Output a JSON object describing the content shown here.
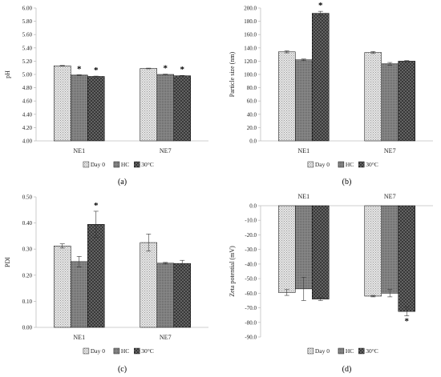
{
  "colors": {
    "day0_fill": "#d9d9d9",
    "hc_fill": "#7f7f7f",
    "c30_fill": "#595959",
    "axis": "#bfbfbf",
    "bar_edge": "#000000"
  },
  "chart_data": [
    {
      "type": "bar",
      "panel_label": "(a)",
      "ylabel": "pH",
      "categories": [
        "NE1",
        "NE7"
      ],
      "ylim": [
        4.0,
        6.0
      ],
      "ytick_step": 0.2,
      "ytick_decimals": 2,
      "series": [
        {
          "name": "Day 0",
          "values": [
            5.13,
            5.09
          ],
          "errors": [
            0.005,
            0.005
          ],
          "sig": [
            false,
            false
          ]
        },
        {
          "name": "HC",
          "values": [
            4.99,
            5.0
          ],
          "errors": [
            0.005,
            0.005
          ],
          "sig": [
            true,
            true
          ]
        },
        {
          "name": "30°C",
          "values": [
            4.97,
            4.98
          ],
          "errors": [
            0.005,
            0.005
          ],
          "sig": [
            true,
            true
          ]
        }
      ],
      "legend": "bottom",
      "grid": false
    },
    {
      "type": "bar",
      "panel_label": "(b)",
      "ylabel": "Particle size (nm)",
      "categories": [
        "NE1",
        "NE7"
      ],
      "ylim": [
        0,
        200
      ],
      "ytick_step": 20,
      "ytick_decimals": 1,
      "series": [
        {
          "name": "Day 0",
          "values": [
            134,
            133
          ],
          "errors": [
            1.5,
            1.5
          ],
          "sig": [
            false,
            false
          ]
        },
        {
          "name": "HC",
          "values": [
            122,
            116
          ],
          "errors": [
            1.2,
            2.0
          ],
          "sig": [
            false,
            false
          ]
        },
        {
          "name": "30°C",
          "values": [
            192,
            120
          ],
          "errors": [
            3.0,
            0.8
          ],
          "sig": [
            true,
            false
          ]
        }
      ],
      "legend": "bottom",
      "grid": false
    },
    {
      "type": "bar",
      "panel_label": "(c)",
      "ylabel": "PDI",
      "categories": [
        "NE1",
        "NE7"
      ],
      "ylim": [
        0.0,
        0.5
      ],
      "ytick_step": 0.1,
      "ytick_decimals": 2,
      "series": [
        {
          "name": "Day 0",
          "values": [
            0.312,
            0.325
          ],
          "errors": [
            0.008,
            0.033
          ],
          "sig": [
            false,
            false
          ]
        },
        {
          "name": "HC",
          "values": [
            0.252,
            0.246
          ],
          "errors": [
            0.02,
            0.003
          ],
          "sig": [
            false,
            false
          ]
        },
        {
          "name": "30°C",
          "values": [
            0.395,
            0.245
          ],
          "errors": [
            0.05,
            0.012
          ],
          "sig": [
            true,
            false
          ]
        }
      ],
      "legend": "bottom",
      "grid": false
    },
    {
      "type": "bar",
      "panel_label": "(d)",
      "ylabel": "Zeta potential (mV)",
      "categories": [
        "NE1",
        "NE7"
      ],
      "category_labels_position": "top",
      "ylim": [
        -90,
        0
      ],
      "ytick_step": 10,
      "ytick_decimals": 1,
      "series": [
        {
          "name": "Day 0",
          "values": [
            -59.5,
            -62.0
          ],
          "errors": [
            2.0,
            0.5
          ],
          "sig": [
            false,
            false
          ]
        },
        {
          "name": "HC",
          "values": [
            -57.0,
            -60.0
          ],
          "errors": [
            8.0,
            2.5
          ],
          "sig": [
            false,
            false
          ]
        },
        {
          "name": "30°C",
          "values": [
            -64.0,
            -72.5
          ],
          "errors": [
            1.0,
            3.0
          ],
          "sig": [
            false,
            true
          ]
        }
      ],
      "legend": "bottom",
      "grid": false
    }
  ]
}
